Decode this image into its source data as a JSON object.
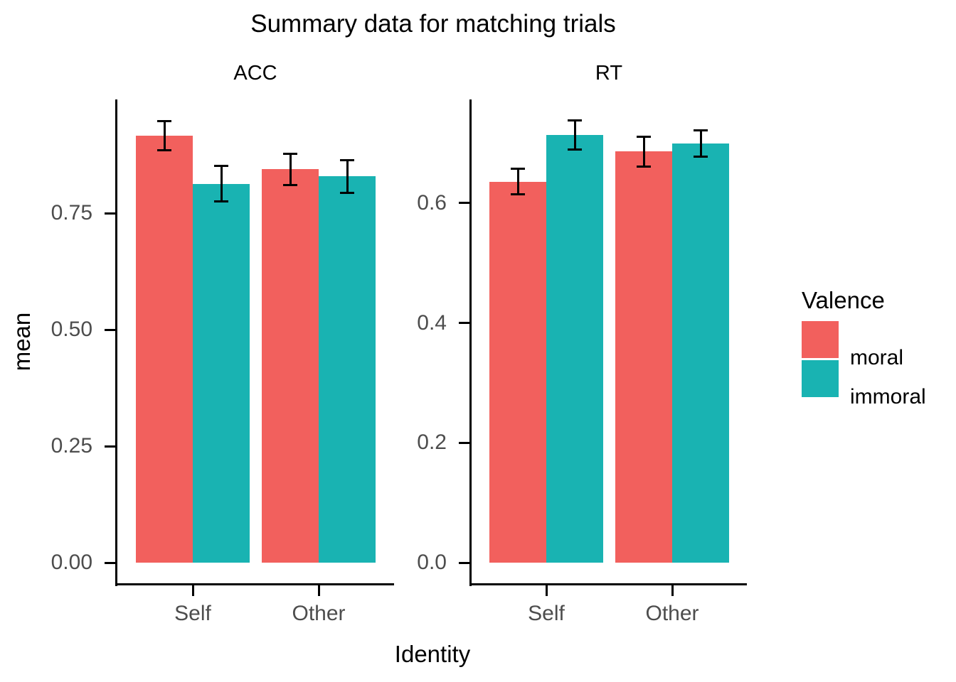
{
  "title": "Summary data for matching trials",
  "x_axis_title": "Identity",
  "y_axis_title": "mean",
  "legend": {
    "title": "Valence",
    "items": [
      {
        "label": "moral",
        "color": "#F2605D"
      },
      {
        "label": "immoral",
        "color": "#19B3B2"
      }
    ]
  },
  "colors": {
    "moral": "#F2605D",
    "immoral": "#19B3B2",
    "axis": "#000000",
    "tick_label_text": "#4D4D4D",
    "title_text": "#000000",
    "background": "#FFFFFF",
    "error_bar": "#000000"
  },
  "chart_data": {
    "type": "bar",
    "title": "Summary data for matching trials",
    "xlabel": "Identity",
    "ylabel": "mean",
    "grid": false,
    "legend_title": "Valence",
    "legend_position": "right",
    "error_bars": true,
    "categories": [
      "Self",
      "Other"
    ],
    "facets": [
      {
        "label": "ACC",
        "ylim": [
          0,
          0.994
        ],
        "y_ticks": [
          0,
          0.25,
          0.5,
          0.75
        ],
        "y_tick_labels": [
          "0.00",
          "0.25",
          "0.50",
          "0.75"
        ],
        "series": [
          {
            "name": "moral",
            "values": [
              0.916,
              0.844
            ],
            "errors": [
              0.031,
              0.034
            ]
          },
          {
            "name": "immoral",
            "values": [
              0.813,
              0.829
            ],
            "errors": [
              0.038,
              0.035
            ]
          }
        ]
      },
      {
        "label": "RT",
        "ylim": [
          0,
          0.773
        ],
        "y_ticks": [
          0,
          0.2,
          0.4,
          0.6
        ],
        "y_tick_labels": [
          "0.0",
          "0.2",
          "0.4",
          "0.6"
        ],
        "series": [
          {
            "name": "moral",
            "values": [
              0.636,
              0.686
            ],
            "errors": [
              0.021,
              0.025
            ]
          },
          {
            "name": "immoral",
            "values": [
              0.714,
              0.7
            ],
            "errors": [
              0.024,
              0.022
            ]
          }
        ]
      }
    ]
  }
}
